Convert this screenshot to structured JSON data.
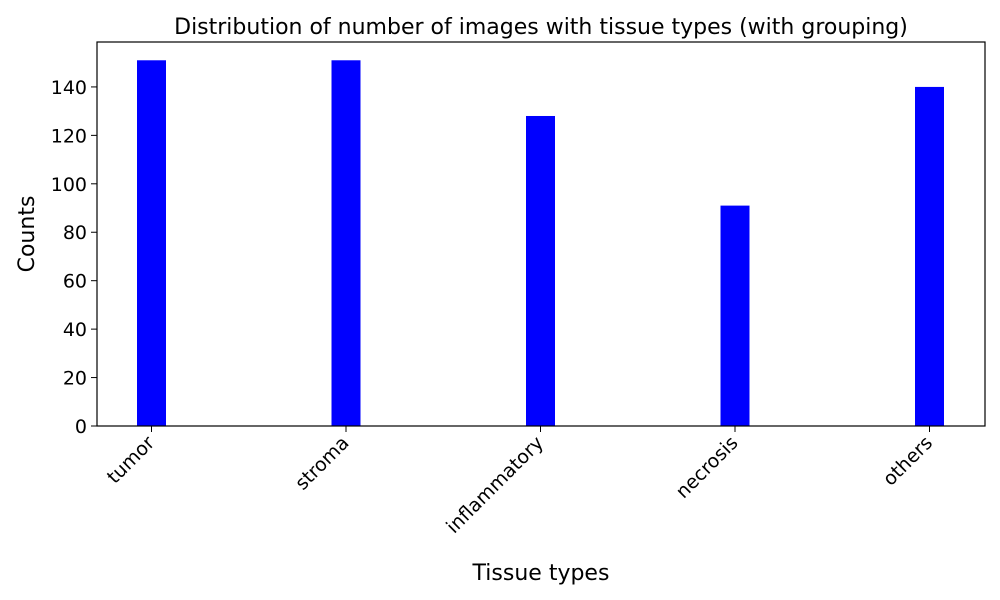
{
  "chart_data": {
    "type": "bar",
    "title": "Distribution of number of images with tissue types (with grouping)",
    "xlabel": "Tissue types",
    "ylabel": "Counts",
    "categories": [
      "tumor",
      "stroma",
      "inflammatory",
      "necrosis",
      "others"
    ],
    "values": [
      151,
      151,
      128,
      91,
      140
    ],
    "ylim": [
      0,
      158.55
    ],
    "yticks": [
      0,
      20,
      40,
      60,
      80,
      100,
      120,
      140
    ],
    "bar_color": "#0000ff",
    "grid": false,
    "legend": "none"
  }
}
